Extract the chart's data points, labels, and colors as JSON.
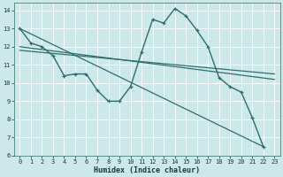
{
  "background_color": "#cce8e8",
  "grid_color": "#ffffff",
  "line_color": "#2d6e6e",
  "xlabel": "Humidex (Indice chaleur)",
  "xlim": [
    -0.5,
    23.5
  ],
  "ylim": [
    6,
    14.4
  ],
  "xticks": [
    0,
    1,
    2,
    3,
    4,
    5,
    6,
    7,
    8,
    9,
    10,
    11,
    12,
    13,
    14,
    15,
    16,
    17,
    18,
    19,
    20,
    21,
    22,
    23
  ],
  "yticks": [
    6,
    7,
    8,
    9,
    10,
    11,
    12,
    13,
    14
  ],
  "series": [
    {
      "x": [
        0,
        1,
        2,
        3,
        4,
        5,
        6,
        7,
        8,
        9,
        10,
        11,
        12,
        13,
        14,
        15,
        16,
        17,
        18,
        19,
        20,
        21,
        22
      ],
      "y": [
        13.0,
        12.2,
        12.0,
        11.5,
        10.4,
        10.5,
        10.5,
        9.6,
        9.0,
        9.0,
        9.8,
        11.7,
        13.5,
        13.3,
        14.1,
        13.7,
        12.9,
        12.0,
        10.3,
        9.8,
        9.5,
        8.1,
        6.5
      ],
      "marker": true,
      "lw": 1.0
    },
    {
      "x": [
        0,
        22
      ],
      "y": [
        13.0,
        6.5
      ],
      "marker": false,
      "lw": 0.9
    },
    {
      "x": [
        0,
        23
      ],
      "y": [
        12.0,
        10.2
      ],
      "marker": false,
      "lw": 0.9
    },
    {
      "x": [
        0,
        23
      ],
      "y": [
        11.8,
        10.5
      ],
      "marker": false,
      "lw": 0.9
    }
  ]
}
